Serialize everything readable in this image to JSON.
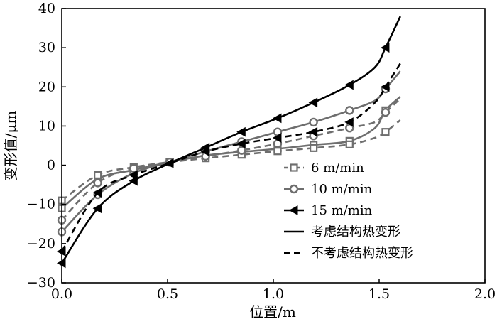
{
  "chart_data": {
    "type": "line",
    "xlabel": "位置/m",
    "ylabel": "变形值/μm",
    "xlim": [
      0.0,
      2.0
    ],
    "ylim": [
      -30,
      40
    ],
    "xticks": [
      0.0,
      0.5,
      1.0,
      1.5,
      2.0
    ],
    "xtick_labels": [
      "0.0",
      "0.5",
      "1.0",
      "1.5",
      "2.0"
    ],
    "yticks": [
      -30,
      -20,
      -10,
      0,
      10,
      20,
      30,
      40
    ],
    "ytick_labels": [
      "−30",
      "−20",
      "−10",
      "0",
      "10",
      "20",
      "30",
      "40"
    ],
    "grid": false,
    "legend_position": "center-right",
    "legend": [
      {
        "label": "6 m/min",
        "kind": "marker",
        "marker": "square"
      },
      {
        "label": "10 m/min",
        "kind": "marker",
        "marker": "circle"
      },
      {
        "label": "15 m/min",
        "kind": "marker",
        "marker": "triangle-left"
      },
      {
        "label": "考虑结构热变形",
        "kind": "line",
        "dash": "solid"
      },
      {
        "label": "不考虑结构热变形",
        "kind": "line",
        "dash": "dashed"
      }
    ],
    "colors": {
      "gray": "#6e6e6e",
      "black": "#000000"
    },
    "marker_x": [
      0.0,
      0.17,
      0.34,
      0.51,
      0.68,
      0.85,
      1.02,
      1.19,
      1.36,
      1.53
    ],
    "series": [
      {
        "speed": "6 m/min",
        "thermal": "with",
        "dash": "solid",
        "color": "#6e6e6e",
        "marker": "square",
        "x": [
          0.0,
          0.17,
          0.34,
          0.51,
          0.68,
          0.85,
          1.02,
          1.19,
          1.36,
          1.48,
          1.53,
          1.6
        ],
        "y": [
          -11,
          -3.5,
          -1.2,
          0.8,
          2.5,
          3.4,
          4.2,
          5.2,
          6.2,
          9.5,
          14,
          17.5
        ]
      },
      {
        "speed": "6 m/min",
        "thermal": "without",
        "dash": "dashed",
        "color": "#6e6e6e",
        "marker": "square",
        "x": [
          0.0,
          0.17,
          0.34,
          0.51,
          0.68,
          0.85,
          1.02,
          1.19,
          1.36,
          1.48,
          1.53,
          1.6
        ],
        "y": [
          -9,
          -2.5,
          -0.5,
          0.8,
          1.8,
          2.7,
          3.6,
          4.4,
          5.3,
          7,
          8.5,
          11.5
        ]
      },
      {
        "speed": "10 m/min",
        "thermal": "with",
        "dash": "solid",
        "color": "#6e6e6e",
        "marker": "circle",
        "x": [
          0.0,
          0.17,
          0.34,
          0.51,
          0.68,
          0.85,
          1.02,
          1.19,
          1.36,
          1.48,
          1.53,
          1.6
        ],
        "y": [
          -17,
          -7.5,
          -2,
          0.8,
          3.5,
          6,
          8.5,
          11,
          14,
          16.5,
          19.5,
          24
        ]
      },
      {
        "speed": "10 m/min",
        "thermal": "without",
        "dash": "dashed",
        "color": "#6e6e6e",
        "marker": "circle",
        "x": [
          0.0,
          0.17,
          0.34,
          0.51,
          0.68,
          0.85,
          1.02,
          1.19,
          1.36,
          1.48,
          1.53,
          1.6
        ],
        "y": [
          -14,
          -4.5,
          -0.8,
          0.8,
          2.3,
          3.8,
          5.5,
          7.5,
          9.5,
          11,
          13.5,
          17
        ]
      },
      {
        "speed": "15 m/min",
        "thermal": "with",
        "dash": "solid",
        "color": "#000000",
        "marker": "triangle-left",
        "x": [
          0.0,
          0.17,
          0.34,
          0.51,
          0.68,
          0.85,
          1.02,
          1.19,
          1.36,
          1.48,
          1.53,
          1.6
        ],
        "y": [
          -25,
          -11,
          -4,
          0.5,
          4.5,
          8.5,
          12,
          16,
          20.5,
          25,
          30,
          38
        ]
      },
      {
        "speed": "15 m/min",
        "thermal": "without",
        "dash": "dashed",
        "color": "#000000",
        "marker": "triangle-left",
        "x": [
          0.0,
          0.17,
          0.34,
          0.51,
          0.68,
          0.85,
          1.02,
          1.19,
          1.36,
          1.48,
          1.53,
          1.6
        ],
        "y": [
          -22,
          -7,
          -2.5,
          0.5,
          3.5,
          5.5,
          7,
          8.5,
          11,
          16,
          20,
          26
        ]
      }
    ]
  }
}
